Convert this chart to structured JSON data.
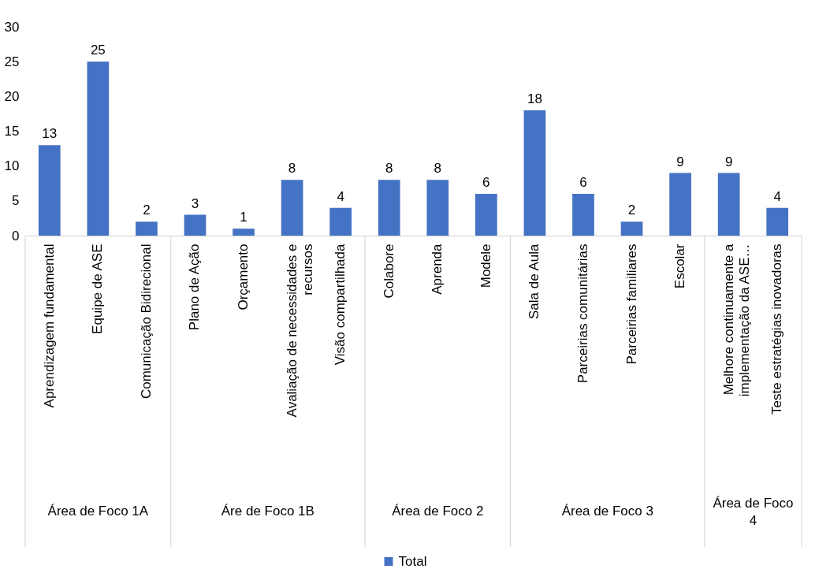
{
  "chart_data": {
    "type": "bar",
    "categories": [
      "Aprendizagem fundamental",
      "Equipe de ASE",
      "Comunicação Bidirecional",
      "Plano de Ação",
      "Orçamento",
      "Avaliação de necessidades e recursos",
      "Visão compartilhada",
      "Colabore",
      "Aprenda",
      "Modele",
      "Sala de Aula",
      "Parceirias comunitárias",
      "Parceirias familiares",
      "Escolar",
      "Melhore continuamente a implementação da ASE…",
      "Teste estratégias inovadoras"
    ],
    "series": [
      {
        "name": "Total",
        "color": "#4472c4",
        "values": [
          13,
          25,
          2,
          3,
          1,
          8,
          4,
          8,
          8,
          6,
          18,
          6,
          2,
          9,
          9,
          4
        ]
      }
    ],
    "annotations": [
      "Área de Foco 1A",
      "Áre de Foco 1B",
      "Área de Foco 2",
      "Área de Foco 3",
      "Área de Foco 4"
    ],
    "ylim": [
      0,
      30
    ],
    "yticks": [
      0,
      5,
      10,
      15,
      20,
      25,
      30
    ],
    "data_labels": true,
    "grid": false,
    "legend": "bottom"
  }
}
